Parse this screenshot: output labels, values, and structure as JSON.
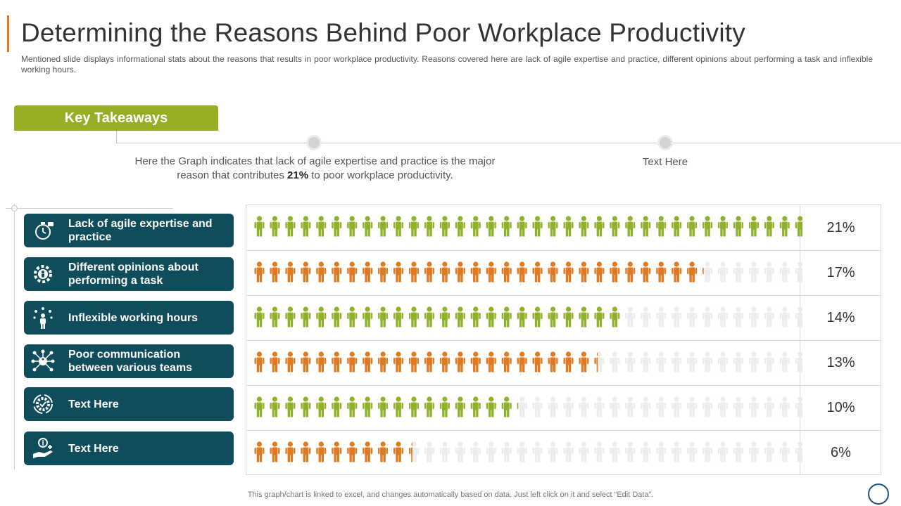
{
  "slide": {
    "title": "Determining the Reasons Behind Poor Workplace Productivity",
    "subtitle": "Mentioned slide displays informational  stats about the reasons that results in poor workplace productivity.  Reasons covered  here are lack of agile expertise and practice, different opinions about performing  a task and inflexible working hours.",
    "footer": "This graph/chart is linked to excel, and changes automatically based on data. Just left click on it and select “Edit Data”."
  },
  "takeaways": {
    "tab_label": "Key Takeaways",
    "item1_pre": "Here the Graph indicates that lack of agile expertise and practice is the major reason that contributes ",
    "item1_bold": "21%",
    "item1_post": " to poor workplace productivity.",
    "item2": "Text Here"
  },
  "colors": {
    "green": "#8fb22a",
    "orange": "#e0791f",
    "empty": "#ececec",
    "label_bg": "#0f4c5c",
    "accent": "#e0791f",
    "tab": "#97ad23"
  },
  "chart_data": {
    "type": "bar",
    "categories": [
      "Lack of agile expertise and practice",
      "Different opinions about performing a task",
      "Inflexible working hours",
      "Poor communication between various teams",
      "Text Here",
      "Text Here"
    ],
    "values": [
      21,
      17,
      14,
      13,
      10,
      6
    ],
    "value_labels": [
      "21%",
      "17%",
      "14%",
      "13%",
      "10%",
      "6%"
    ],
    "row_colors": [
      "green",
      "orange",
      "green",
      "orange",
      "green",
      "orange"
    ],
    "icons": [
      "stopwatch-icon",
      "gear-person-icon",
      "person-ideas-icon",
      "network-person-icon",
      "cycle-gear-icon",
      "hand-money-icon"
    ],
    "xlim": [
      0,
      21
    ]
  }
}
